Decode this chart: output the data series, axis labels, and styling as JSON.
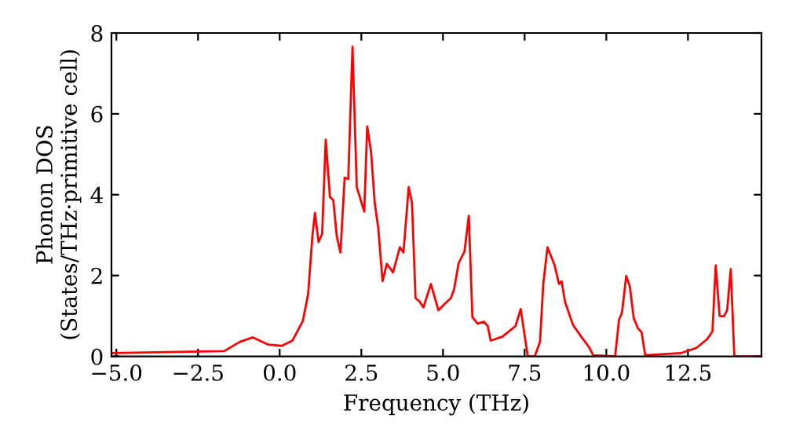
{
  "chart_data": {
    "type": "line",
    "xlabel": "Frequency (THz)",
    "ylabel": "Phonon DOS\n(States/THz·primitive cell)",
    "x": [
      -5.15,
      -1.7,
      -1.22,
      -0.82,
      -0.34,
      0.06,
      0.39,
      0.71,
      0.87,
      1.0,
      1.08,
      1.19,
      1.3,
      1.41,
      1.54,
      1.64,
      1.75,
      1.86,
      1.99,
      2.1,
      2.23,
      2.36,
      2.59,
      2.68,
      2.8,
      2.91,
      3.02,
      3.15,
      3.28,
      3.47,
      3.68,
      3.79,
      3.95,
      4.05,
      4.16,
      4.28,
      4.4,
      4.63,
      4.86,
      5.05,
      5.24,
      5.34,
      5.48,
      5.66,
      5.79,
      5.9,
      6.06,
      6.25,
      6.37,
      6.46,
      6.82,
      7.22,
      7.38,
      7.59,
      7.62,
      7.81,
      7.97,
      8.07,
      8.2,
      8.42,
      8.55,
      8.63,
      8.74,
      8.98,
      9.23,
      9.47,
      9.6,
      10.27,
      10.39,
      10.48,
      10.61,
      10.72,
      10.84,
      10.97,
      11.08,
      11.19,
      12.28,
      12.76,
      13.09,
      13.25,
      13.35,
      13.47,
      13.6,
      13.7,
      13.81,
      13.92,
      14.75
    ],
    "series": [
      {
        "color": "#ff0000",
        "values": [
          0.08,
          0.13,
          0.36,
          0.47,
          0.29,
          0.26,
          0.39,
          0.88,
          1.53,
          2.96,
          3.55,
          2.83,
          3.03,
          5.36,
          3.94,
          3.87,
          2.96,
          2.57,
          4.42,
          4.39,
          7.66,
          4.19,
          3.58,
          5.69,
          5.04,
          3.8,
          3.16,
          1.86,
          2.29,
          2.08,
          2.7,
          2.57,
          4.19,
          3.8,
          1.44,
          1.36,
          1.21,
          1.79,
          1.14,
          1.3,
          1.44,
          1.66,
          2.31,
          2.6,
          3.48,
          0.97,
          0.81,
          0.86,
          0.75,
          0.39,
          0.49,
          0.75,
          1.17,
          0.03,
          0,
          0,
          0.36,
          1.79,
          2.7,
          2.25,
          1.79,
          1.86,
          1.34,
          0.78,
          0.49,
          0.23,
          0.03,
          0,
          0.91,
          1.08,
          1.99,
          1.73,
          0.95,
          0.69,
          0.6,
          0.03,
          0.08,
          0.21,
          0.43,
          0.62,
          2.25,
          1.0,
          0.99,
          1.14,
          2.16,
          0,
          0
        ]
      }
    ],
    "xlim": [
      -5.15,
      14.75
    ],
    "ylim": [
      0,
      8
    ],
    "xticks": [
      {
        "value": -5,
        "label": "−5.0"
      },
      {
        "value": -2.5,
        "label": "−2.5"
      },
      {
        "value": 0,
        "label": "0.0"
      },
      {
        "value": 2.5,
        "label": "2.5"
      },
      {
        "value": 5,
        "label": "5.0"
      },
      {
        "value": 7.5,
        "label": "7.5"
      },
      {
        "value": 10,
        "label": "10.0"
      },
      {
        "value": 12.5,
        "label": "12.5"
      }
    ],
    "yticks": [
      0,
      2,
      4,
      6,
      8
    ],
    "grid": false,
    "marker": "none",
    "line_style": "solid"
  }
}
